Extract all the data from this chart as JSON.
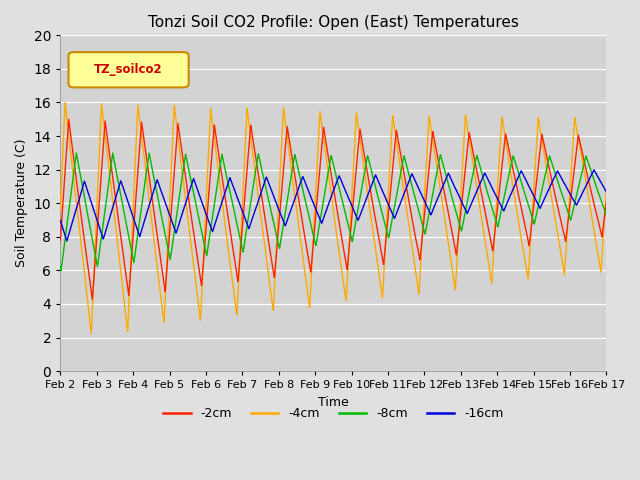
{
  "title": "Tonzi Soil CO2 Profile: Open (East) Temperatures",
  "xlabel": "Time",
  "ylabel": "Soil Temperature (C)",
  "ylim": [
    0,
    20
  ],
  "xlim": [
    0,
    15
  ],
  "xtick_labels": [
    "Feb 2",
    "Feb 3",
    "Feb 4",
    "Feb 5",
    "Feb 6",
    "Feb 7",
    "Feb 8",
    "Feb 9",
    "Feb 10",
    "Feb 11",
    "Feb 12",
    "Feb 13",
    "Feb 14",
    "Feb 15",
    "Feb 16",
    "Feb 17"
  ],
  "colors": {
    "m2cm": "#ff2200",
    "m4cm": "#ffaa00",
    "m8cm": "#00bb00",
    "m16cm": "#0000dd"
  },
  "legend_box_label": "TZ_soilco2",
  "legend_box_facecolor": "#ffff99",
  "legend_box_edgecolor": "#cc8800",
  "legend_box_textcolor": "#cc0000",
  "bg_color": "#e0e0e0",
  "plot_bg_color": "#d3d3d3",
  "grid_color": "#ffffff",
  "title_fontsize": 11,
  "axis_fontsize": 9,
  "tick_fontsize": 8
}
